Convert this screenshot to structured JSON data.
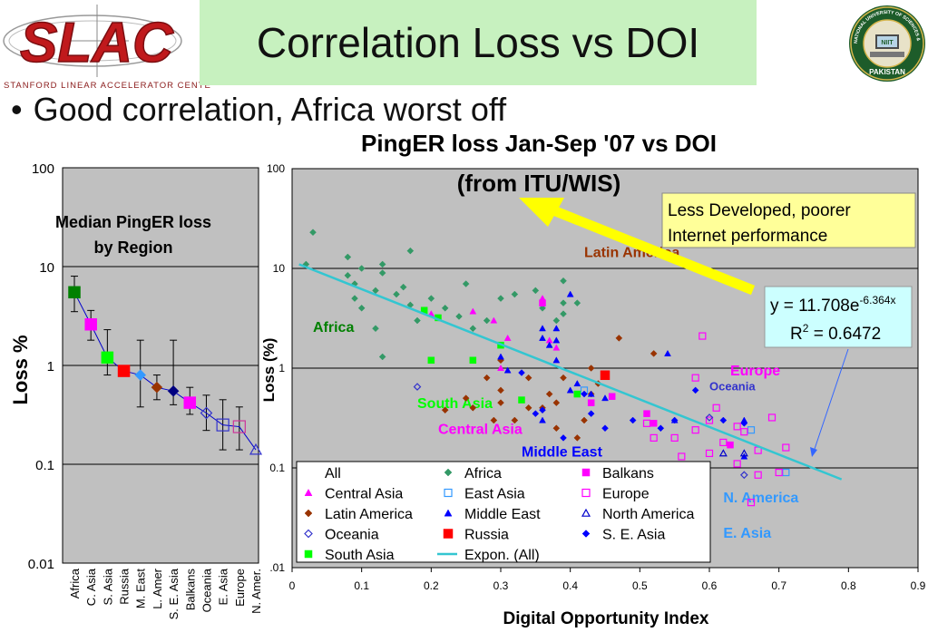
{
  "header": {
    "title": "Correlation Loss vs DOI",
    "left_logo_text": "SLAC",
    "left_logo_subtext": "STANFORD LINEAR ACCELERATOR CENTER",
    "right_logo_text": "NATIONAL UNIVERSITY OF SCIENCES & TECHNOLOGY",
    "right_logo_subtext": "PAKISTAN",
    "right_logo_center": "NIIT"
  },
  "bullet": {
    "symbol": "•",
    "text": "Good correlation, Africa worst off"
  },
  "colors": {
    "plot_bg": "#c0c0c0",
    "title_bg": "#c7f1bf",
    "fit_line": "#33c6d1",
    "arrow": "#ffff00",
    "callout_bg": "#ffff99",
    "formula_bg": "#ccffff"
  },
  "chart_data": [
    {
      "type": "scatter",
      "y_scale": "log",
      "ylabel": "Loss %",
      "ylim": [
        0.01,
        100
      ],
      "y_ticks": [
        "100",
        "10",
        "1",
        "0.1",
        "0.01"
      ],
      "annotation": "Median PingER loss by Region",
      "categories": [
        "Africa",
        "C. Asia",
        "S. Asia",
        "Russia",
        "M. East",
        "L. Amer",
        "S. E. Asia",
        "Balkans",
        "Oceania",
        "E. Asia",
        "Europe",
        "N. Amer."
      ],
      "points": [
        {
          "region": "Africa",
          "median": 5.5,
          "low": 3.5,
          "high": 8,
          "marker": "square",
          "color": "#008000",
          "filled": true
        },
        {
          "region": "C. Asia",
          "median": 2.6,
          "low": 1.8,
          "high": 3.6,
          "marker": "square",
          "color": "#ff00ff",
          "filled": true
        },
        {
          "region": "S. Asia",
          "median": 1.2,
          "low": 0.8,
          "high": 2.3,
          "marker": "square",
          "color": "#00ff00",
          "filled": true
        },
        {
          "region": "Russia",
          "median": 0.88,
          "low": null,
          "high": null,
          "marker": "square",
          "color": "#ff0000",
          "filled": true
        },
        {
          "region": "M. East",
          "median": 0.8,
          "low": 0.38,
          "high": 1.8,
          "marker": "diamond",
          "color": "#3399ff",
          "filled": true
        },
        {
          "region": "L. Amer",
          "median": 0.6,
          "low": 0.45,
          "high": 0.8,
          "marker": "diamond",
          "color": "#993300",
          "filled": true
        },
        {
          "region": "S. E. Asia",
          "median": 0.55,
          "low": 0.4,
          "high": 1.8,
          "marker": "diamond",
          "color": "#000080",
          "filled": true
        },
        {
          "region": "Balkans",
          "median": 0.42,
          "low": 0.32,
          "high": 0.6,
          "marker": "square",
          "color": "#ff00ff",
          "filled": true
        },
        {
          "region": "Oceania",
          "median": 0.33,
          "low": 0.22,
          "high": 0.5,
          "marker": "diamond",
          "color": "#3333cc",
          "filled": false
        },
        {
          "region": "E. Asia",
          "median": 0.25,
          "low": 0.14,
          "high": 0.45,
          "marker": "square",
          "color": "#3333cc",
          "filled": false
        },
        {
          "region": "Europe",
          "median": 0.24,
          "low": 0.14,
          "high": 0.38,
          "marker": "square",
          "color": "#cc3399",
          "filled": false
        },
        {
          "region": "N. Amer.",
          "median": 0.14,
          "low": null,
          "high": null,
          "marker": "triangle",
          "color": "#3333cc",
          "filled": false
        }
      ]
    },
    {
      "type": "scatter",
      "title": "PingER loss Jan-Sep '07 vs DOI",
      "subtitle": "(from ITU/WIS)",
      "xlabel": "Digital Opportunity Index",
      "ylabel": "Loss (%)",
      "y_scale": "log",
      "xlim": [
        0,
        0.9
      ],
      "ylim": [
        0.01,
        100
      ],
      "x_ticks": [
        "0",
        "0.1",
        "0.2",
        "0.3",
        "0.4",
        "0.5",
        "0.6",
        "0.7",
        "0.8",
        "0.9"
      ],
      "y_ticks": [
        "100",
        "10",
        "1",
        "0.1",
        ".01"
      ],
      "fit": {
        "name": "Expon. (All)",
        "a": 11.708,
        "b": -6.364,
        "x_range": [
          0.01,
          0.79
        ]
      },
      "formula_main": "y = 11.708e",
      "formula_exp": "-6.364x",
      "formula_r2_label": "R",
      "formula_r2_sup": "2",
      "formula_r2_value": " = 0.6472",
      "callout": [
        "Less Developed, poorer",
        "Internet performance"
      ],
      "region_labels": [
        {
          "text": "Latin America",
          "color": "#993300",
          "x": 0.42,
          "y": 13
        },
        {
          "text": "Africa",
          "color": "#008000",
          "x": 0.03,
          "y": 2.3
        },
        {
          "text": "Europe",
          "color": "#ff00ff",
          "x": 0.63,
          "y": 0.85
        },
        {
          "text": "Oceania",
          "color": "#3333cc",
          "x": 0.6,
          "y": 0.6
        },
        {
          "text": "South Asia",
          "color": "#00ff00",
          "x": 0.18,
          "y": 0.4
        },
        {
          "text": "Central Asia",
          "color": "#ff00ff",
          "x": 0.21,
          "y": 0.22
        },
        {
          "text": "Middle East",
          "color": "#0000ff",
          "x": 0.33,
          "y": 0.13
        },
        {
          "text": "N. America",
          "color": "#3399ff",
          "x": 0.62,
          "y": 0.045
        },
        {
          "text": "E. Asia",
          "color": "#3399ff",
          "x": 0.62,
          "y": 0.02
        }
      ],
      "series": [
        {
          "name": "All",
          "marker": "none",
          "color": "#000000",
          "points": []
        },
        {
          "name": "Africa",
          "marker": "diamond",
          "color": "#339966",
          "filled": true,
          "points": [
            [
              0.02,
              11
            ],
            [
              0.03,
              23
            ],
            [
              0.08,
              13
            ],
            [
              0.08,
              8.5
            ],
            [
              0.09,
              5
            ],
            [
              0.09,
              7
            ],
            [
              0.1,
              4
            ],
            [
              0.1,
              10
            ],
            [
              0.12,
              6
            ],
            [
              0.13,
              9
            ],
            [
              0.13,
              11
            ],
            [
              0.15,
              5.5
            ],
            [
              0.16,
              6.5
            ],
            [
              0.17,
              15
            ],
            [
              0.17,
              4.3
            ],
            [
              0.2,
              5
            ],
            [
              0.22,
              4
            ],
            [
              0.18,
              3
            ],
            [
              0.24,
              3.3
            ],
            [
              0.25,
              7
            ],
            [
              0.28,
              3
            ],
            [
              0.3,
              5
            ],
            [
              0.32,
              5.5
            ],
            [
              0.35,
              6
            ],
            [
              0.36,
              4
            ],
            [
              0.38,
              3
            ],
            [
              0.39,
              3.5
            ],
            [
              0.39,
              4.5
            ],
            [
              0.39,
              7.5
            ],
            [
              0.41,
              4.5
            ],
            [
              0.13,
              1.3
            ],
            [
              0.12,
              2.5
            ],
            [
              0.26,
              2.5
            ]
          ]
        },
        {
          "name": "Central Asia",
          "marker": "triangle",
          "color": "#ff00ff",
          "filled": true,
          "points": [
            [
              0.2,
              3.5
            ],
            [
              0.26,
              3.7
            ],
            [
              0.29,
              3.0
            ],
            [
              0.31,
              2.0
            ],
            [
              0.36,
              5
            ],
            [
              0.37,
              1.9
            ],
            [
              0.38,
              1.6
            ],
            [
              0.3,
              1.0
            ]
          ]
        },
        {
          "name": "East Asia",
          "marker": "square",
          "color": "#3399ff",
          "filled": false,
          "points": [
            [
              0.42,
              0.6
            ],
            [
              0.66,
              0.24
            ],
            [
              0.71,
              0.09
            ]
          ]
        },
        {
          "name": "Europe",
          "marker": "square",
          "color": "#ff00ff",
          "filled": false,
          "points": [
            [
              0.51,
              0.28
            ],
            [
              0.52,
              0.2
            ],
            [
              0.55,
              0.2
            ],
            [
              0.56,
              0.13
            ],
            [
              0.58,
              0.24
            ],
            [
              0.59,
              2.1
            ],
            [
              0.6,
              0.3
            ],
            [
              0.61,
              0.4
            ],
            [
              0.58,
              0.8
            ],
            [
              0.62,
              0.18
            ],
            [
              0.64,
              0.26
            ],
            [
              0.65,
              0.23
            ],
            [
              0.66,
              0.045
            ],
            [
              0.67,
              0.085
            ],
            [
              0.67,
              0.15
            ],
            [
              0.69,
              0.32
            ],
            [
              0.7,
              0.09
            ],
            [
              0.71,
              0.16
            ],
            [
              0.64,
              0.11
            ],
            [
              0.6,
              0.14
            ]
          ]
        },
        {
          "name": "Latin America",
          "marker": "diamond",
          "color": "#993300",
          "filled": true,
          "points": [
            [
              0.22,
              0.38
            ],
            [
              0.25,
              0.5
            ],
            [
              0.26,
              0.4
            ],
            [
              0.28,
              0.8
            ],
            [
              0.29,
              0.3
            ],
            [
              0.3,
              1.2
            ],
            [
              0.3,
              0.45
            ],
            [
              0.32,
              0.3
            ],
            [
              0.34,
              0.4
            ],
            [
              0.34,
              0.8
            ],
            [
              0.36,
              0.4
            ],
            [
              0.37,
              0.55
            ],
            [
              0.38,
              0.45
            ],
            [
              0.38,
              0.25
            ],
            [
              0.39,
              0.8
            ],
            [
              0.41,
              0.2
            ],
            [
              0.42,
              0.3
            ],
            [
              0.43,
              1.0
            ],
            [
              0.43,
              0.55
            ],
            [
              0.44,
              0.7
            ],
            [
              0.45,
              0.85
            ],
            [
              0.47,
              2.0
            ],
            [
              0.52,
              1.4
            ],
            [
              0.3,
              0.6
            ]
          ]
        },
        {
          "name": "Middle East",
          "marker": "triangle",
          "color": "#0000ff",
          "filled": true,
          "points": [
            [
              0.3,
              1.3
            ],
            [
              0.31,
              0.95
            ],
            [
              0.36,
              2.5
            ],
            [
              0.36,
              2.0
            ],
            [
              0.37,
              1.7
            ],
            [
              0.38,
              2.5
            ],
            [
              0.38,
              1.9
            ],
            [
              0.38,
              1.2
            ],
            [
              0.4,
              5.5
            ],
            [
              0.4,
              0.6
            ],
            [
              0.41,
              0.7
            ],
            [
              0.43,
              0.55
            ],
            [
              0.45,
              0.5
            ],
            [
              0.54,
              1.4
            ],
            [
              0.55,
              0.3
            ],
            [
              0.65,
              0.3
            ],
            [
              0.65,
              0.13
            ],
            [
              0.36,
              0.3
            ]
          ]
        },
        {
          "name": "Oceania",
          "marker": "diamond",
          "color": "#3333cc",
          "filled": false,
          "points": [
            [
              0.18,
              0.65
            ],
            [
              0.6,
              0.32
            ],
            [
              0.65,
              0.085
            ]
          ]
        },
        {
          "name": "Russia",
          "marker": "square",
          "color": "#ff0000",
          "filled": true,
          "points": [
            [
              0.45,
              0.85
            ]
          ]
        },
        {
          "name": "North America",
          "marker": "triangle",
          "color": "#0000cc",
          "filled": false,
          "points": [
            [
              0.62,
              0.14
            ],
            [
              0.65,
              0.14
            ]
          ]
        },
        {
          "name": "South Asia",
          "marker": "square",
          "color": "#00ff00",
          "filled": true,
          "points": [
            [
              0.19,
              3.8
            ],
            [
              0.2,
              1.2
            ],
            [
              0.21,
              3.2
            ],
            [
              0.26,
              1.2
            ],
            [
              0.3,
              1.7
            ],
            [
              0.33,
              0.48
            ],
            [
              0.41,
              0.55
            ]
          ]
        },
        {
          "name": "S. E. Asia",
          "marker": "diamond",
          "color": "#0000ff",
          "filled": true,
          "points": [
            [
              0.33,
              0.9
            ],
            [
              0.35,
              0.35
            ],
            [
              0.39,
              0.2
            ],
            [
              0.42,
              0.55
            ],
            [
              0.43,
              0.35
            ],
            [
              0.45,
              0.25
            ],
            [
              0.49,
              0.3
            ],
            [
              0.55,
              0.3
            ],
            [
              0.58,
              0.6
            ],
            [
              0.62,
              0.3
            ],
            [
              0.65,
              0.28
            ],
            [
              0.53,
              0.25
            ],
            [
              0.36,
              0.38
            ]
          ]
        },
        {
          "name": "Balkans",
          "marker": "square",
          "color": "#ff00ff",
          "filled": true,
          "points": [
            [
              0.36,
              4.5
            ],
            [
              0.43,
              0.45
            ],
            [
              0.46,
              0.52
            ],
            [
              0.51,
              0.35
            ],
            [
              0.52,
              0.28
            ],
            [
              0.63,
              0.17
            ]
          ]
        }
      ]
    }
  ]
}
